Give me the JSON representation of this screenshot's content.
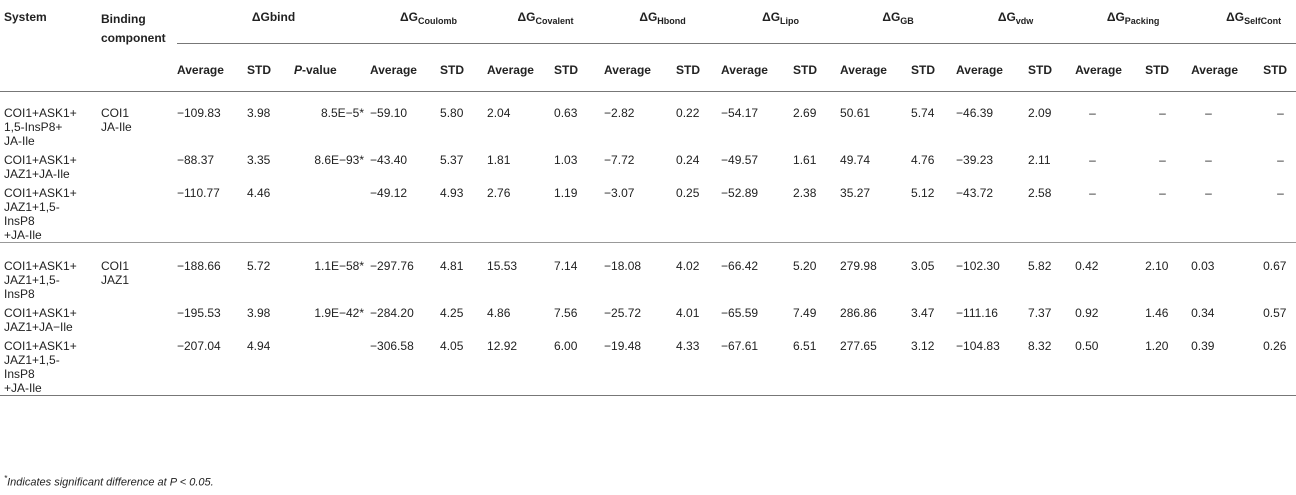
{
  "headers": {
    "system": "System",
    "binding_component": "Binding component",
    "groups": [
      {
        "sym": "ΔG",
        "sub": "",
        "main": "ΔGbind"
      },
      {
        "sym": "ΔG",
        "sub": "Coulomb"
      },
      {
        "sym": "ΔG",
        "sub": "Covalent"
      },
      {
        "sym": "ΔG",
        "sub": "Hbond"
      },
      {
        "sym": "ΔG",
        "sub": "Lipo"
      },
      {
        "sym": "ΔG",
        "sub": "GB"
      },
      {
        "sym": "ΔG",
        "sub": "vdw"
      },
      {
        "sym": "ΔG",
        "sub": "Packing"
      },
      {
        "sym": "ΔG",
        "sub": "SelfCont"
      }
    ],
    "sub": {
      "average": "Average",
      "std": "STD",
      "pvalue_p": "P",
      "pvalue_rest": "-value"
    }
  },
  "rows": [
    {
      "system": [
        "COI1+ASK1+",
        "1,5-InsP8+",
        "JA-Ile"
      ],
      "component": [
        "COI1",
        "JA-Ile"
      ],
      "vals": [
        "−109.83",
        "3.98",
        "8.5E−5*",
        "−59.10",
        "5.80",
        "2.04",
        "0.63",
        "−2.82",
        "0.22",
        "−54.17",
        "2.69",
        "50.61",
        "5.74",
        "−46.39",
        "2.09",
        "–",
        "–",
        "–",
        "–"
      ]
    },
    {
      "system": [
        "COI1+ASK1+",
        "JAZ1+JA-Ile"
      ],
      "component": [],
      "vals": [
        "−88.37",
        "3.35",
        "8.6E−93*",
        "−43.40",
        "5.37",
        "1.81",
        "1.03",
        "−7.72",
        "0.24",
        "−49.57",
        "1.61",
        "49.74",
        "4.76",
        "−39.23",
        "2.11",
        "–",
        "–",
        "–",
        "–"
      ]
    },
    {
      "system": [
        "COI1+ASK1+",
        "JAZ1+1,5-",
        "InsP8",
        "+JA-Ile"
      ],
      "component": [],
      "vals": [
        "−110.77",
        "4.46",
        "",
        "−49.12",
        "4.93",
        "2.76",
        "1.19",
        "−3.07",
        "0.25",
        "−52.89",
        "2.38",
        "35.27",
        "5.12",
        "−43.72",
        "2.58",
        "–",
        "–",
        "–",
        "–"
      ]
    },
    {
      "system": [
        "COI1+ASK1+",
        "JAZ1+1,5-",
        "InsP8"
      ],
      "component": [
        "COI1",
        "JAZ1"
      ],
      "vals": [
        "−188.66",
        "5.72",
        "1.1E−58*",
        "−297.76",
        "4.81",
        "15.53",
        "7.14",
        "−18.08",
        "4.02",
        "−66.42",
        "5.20",
        "279.98",
        "3.05",
        "−102.30",
        "5.82",
        "0.42",
        "2.10",
        "0.03",
        "0.67"
      ]
    },
    {
      "system": [
        "COI1+ASK1+",
        "JAZ1+JA−Ile"
      ],
      "component": [],
      "vals": [
        "−195.53",
        "3.98",
        "1.9E−42*",
        "−284.20",
        "4.25",
        "4.86",
        "7.56",
        "−25.72",
        "4.01",
        "−65.59",
        "7.49",
        "286.86",
        "3.47",
        "−111.16",
        "7.37",
        "0.92",
        "1.46",
        "0.34",
        "0.57"
      ]
    },
    {
      "system": [
        "COI1+ASK1+",
        "JAZ1+1,5-",
        "InsP8",
        "+JA-Ile"
      ],
      "component": [],
      "vals": [
        "−207.04",
        "4.94",
        "",
        "−306.58",
        "4.05",
        "12.92",
        "6.00",
        "−19.48",
        "4.33",
        "−67.61",
        "6.51",
        "277.65",
        "3.12",
        "−104.83",
        "8.32",
        "0.50",
        "1.20",
        "0.39",
        "0.26"
      ]
    }
  ],
  "footnote": {
    "mark": "*",
    "text": "Indicates significant difference at P < 0.05."
  }
}
